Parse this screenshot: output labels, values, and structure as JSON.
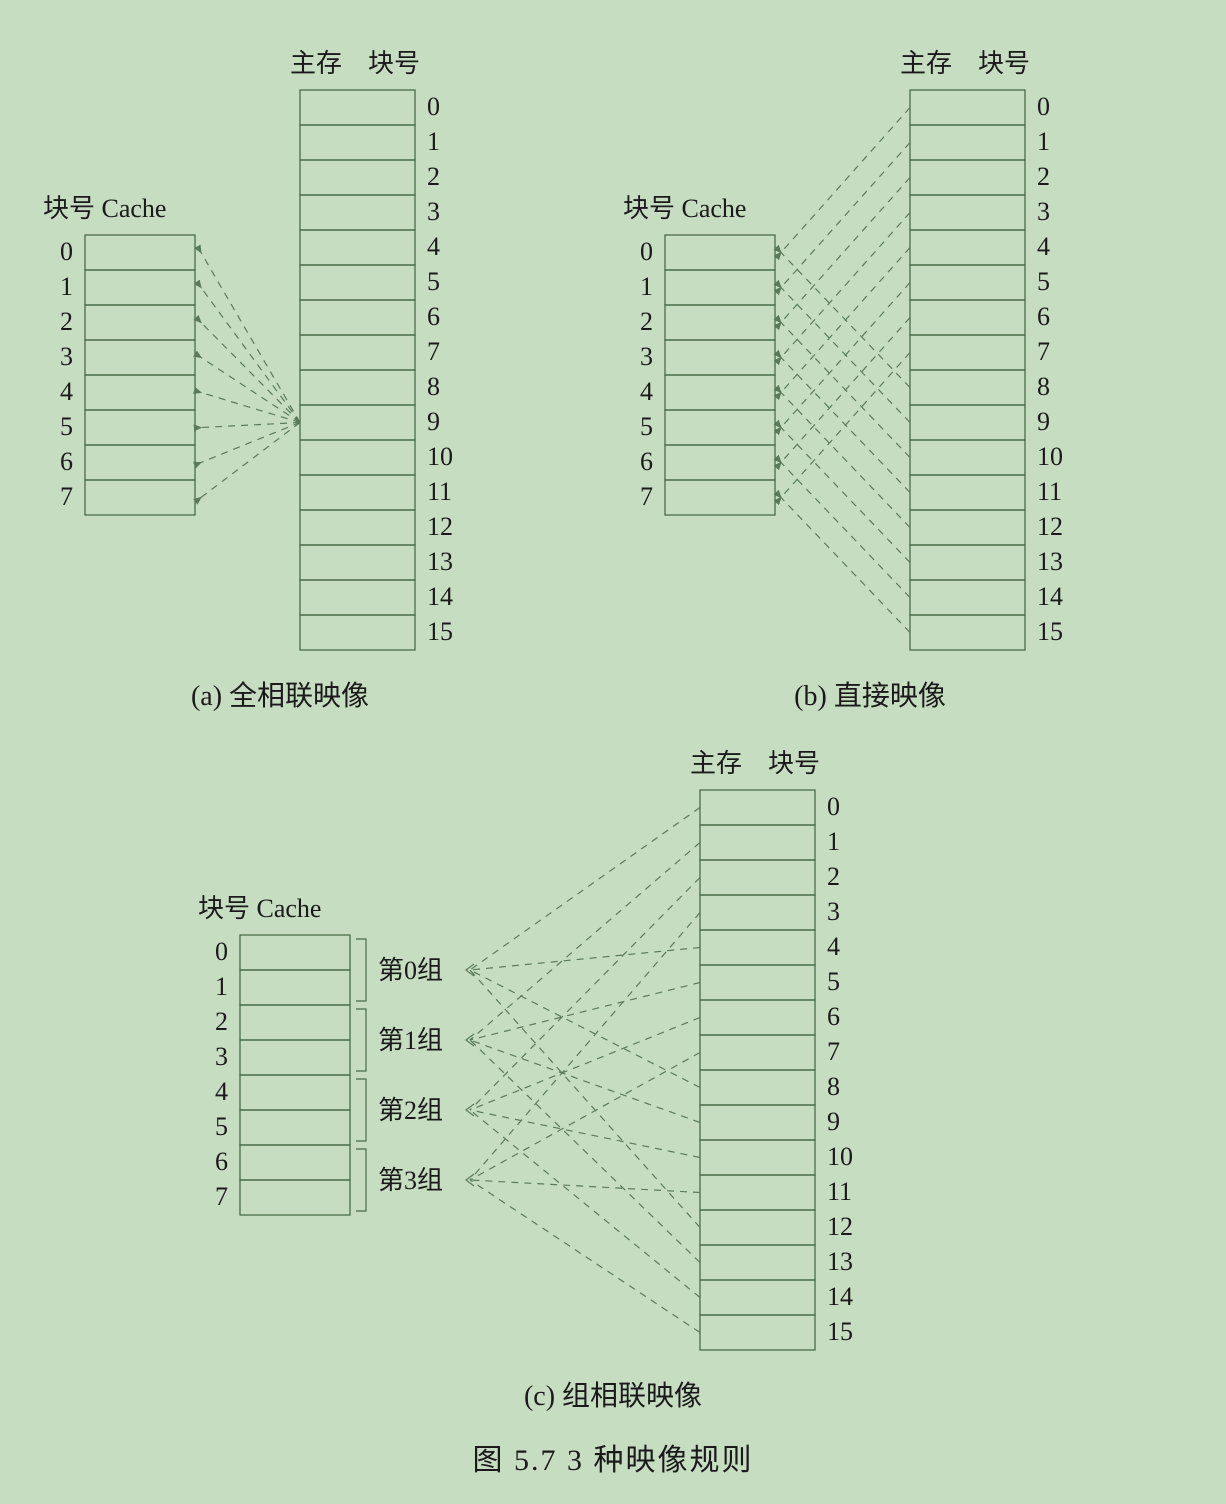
{
  "figure_caption": "图 5.7  3 种映像规则",
  "labels": {
    "cache_header": "块号 Cache",
    "mem_header_left": "主存",
    "mem_header_right": "块号"
  },
  "panels": {
    "a": {
      "caption": "(a) 全相联映像"
    },
    "b": {
      "caption": "(b) 直接映像"
    },
    "c": {
      "caption": "(c) 组相联映像",
      "group_labels": [
        "第0组",
        "第1组",
        "第2组",
        "第3组"
      ]
    }
  },
  "cache_blocks": [
    "0",
    "1",
    "2",
    "3",
    "4",
    "5",
    "6",
    "7"
  ],
  "mem_blocks": [
    "0",
    "1",
    "2",
    "3",
    "4",
    "5",
    "6",
    "7",
    "8",
    "9",
    "10",
    "11",
    "12",
    "13",
    "14",
    "15"
  ],
  "style": {
    "background_color": "#c7ddc1",
    "box_stroke": "#4a6b4a",
    "box_stroke_width": 1.3,
    "cache_block_w": 110,
    "cache_block_h": 35,
    "mem_block_w": 115,
    "mem_block_h": 35,
    "dash": "7,6",
    "dash_stroke": "#5a7a5a",
    "dash_width": 1.2,
    "arrow_fill": "#5a7a5a",
    "text_font_size": 26,
    "caption_font_size": 28,
    "fig_caption_font_size": 30
  },
  "mapping": {
    "a": {
      "source_mem": 9,
      "to_all_cache": true
    },
    "b": {
      "pairs": [
        [
          0,
          0
        ],
        [
          1,
          1
        ],
        [
          2,
          2
        ],
        [
          3,
          3
        ],
        [
          4,
          4
        ],
        [
          5,
          5
        ],
        [
          6,
          6
        ],
        [
          7,
          7
        ],
        [
          8,
          0
        ],
        [
          9,
          1
        ],
        [
          10,
          2
        ],
        [
          11,
          3
        ],
        [
          12,
          4
        ],
        [
          13,
          5
        ],
        [
          14,
          6
        ],
        [
          15,
          7
        ]
      ]
    },
    "c": {
      "group_points": 4,
      "pairs": [
        [
          0,
          0
        ],
        [
          4,
          0
        ],
        [
          8,
          0
        ],
        [
          12,
          0
        ],
        [
          1,
          1
        ],
        [
          5,
          1
        ],
        [
          9,
          1
        ],
        [
          13,
          1
        ],
        [
          2,
          2
        ],
        [
          6,
          2
        ],
        [
          10,
          2
        ],
        [
          14,
          2
        ],
        [
          3,
          3
        ],
        [
          7,
          3
        ],
        [
          11,
          3
        ],
        [
          15,
          3
        ]
      ]
    }
  }
}
